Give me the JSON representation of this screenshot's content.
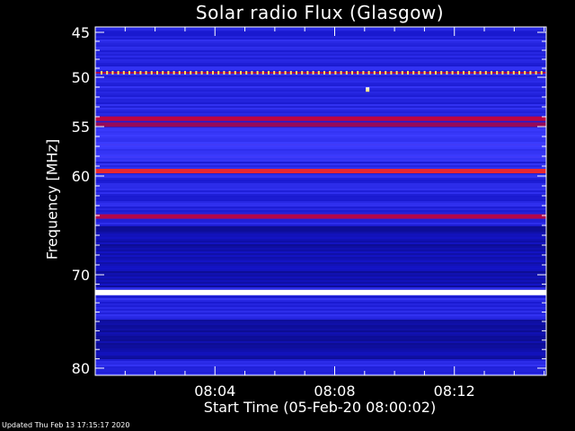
{
  "chart_data": {
    "type": "heatmap",
    "title": "Solar radio Flux (Glasgow)",
    "ylabel": "Frequency [MHz]",
    "xlabel": "Start Time (05-Feb-20 08:00:02)",
    "y_ticks": [
      "45",
      "50",
      "55",
      "60",
      "70",
      "80"
    ],
    "y_tick_values": [
      45,
      50,
      55,
      60,
      70,
      80
    ],
    "x_ticks": [
      "08:04",
      "08:08",
      "08:12"
    ],
    "x_tick_minutes": [
      4,
      8,
      12
    ],
    "xlim_minutes": [
      0,
      15.07
    ],
    "ylim_mhz": [
      45,
      80
    ],
    "colormap": "blue-red-yellow-white",
    "features": [
      {
        "kind": "band",
        "freq_mhz": 45.2,
        "intensity": 0.22
      },
      {
        "kind": "dotted-line",
        "freq_mhz": 49.5,
        "intensity": 0.95
      },
      {
        "kind": "point",
        "time_min": 9.1,
        "freq_mhz": 51.2,
        "intensity": 1.0
      },
      {
        "kind": "band",
        "freq_mhz": 54.2,
        "intensity": 0.65
      },
      {
        "kind": "band",
        "freq_mhz": 54.8,
        "intensity": 0.55
      },
      {
        "kind": "band",
        "freq_mhz": 59.5,
        "intensity": 0.78
      },
      {
        "kind": "band",
        "freq_mhz": 64.1,
        "intensity": 0.62
      },
      {
        "kind": "band",
        "freq_mhz": 71.9,
        "intensity": 1.0
      }
    ]
  },
  "footer": "Updated Thu Feb 13 17:15:17 2020",
  "colors": {
    "background": "#000000",
    "axis": "#ffffff",
    "low": "#0a0a9a",
    "mid": "#3a3aff",
    "red": "#e00030",
    "yellow": "#ffe060",
    "white": "#ffffff"
  }
}
